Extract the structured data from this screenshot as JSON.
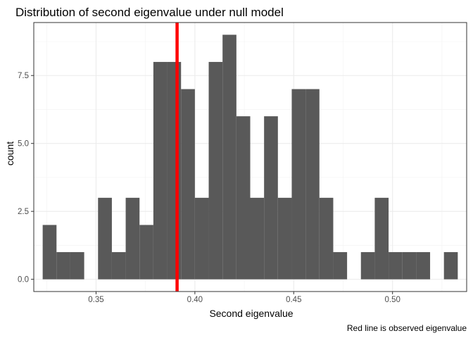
{
  "chart_data": {
    "type": "bar",
    "title": "Distribution of second eigenvalue under null model",
    "xlabel": "Second eigenvalue",
    "ylabel": "count",
    "caption": "Red line is observed eigenvalue",
    "bin_width": 0.007,
    "bins": [
      {
        "x": 0.3265,
        "count": 2
      },
      {
        "x": 0.3335,
        "count": 1
      },
      {
        "x": 0.3405,
        "count": 1
      },
      {
        "x": 0.3475,
        "count": 0
      },
      {
        "x": 0.3545,
        "count": 3
      },
      {
        "x": 0.3615,
        "count": 1
      },
      {
        "x": 0.3685,
        "count": 3
      },
      {
        "x": 0.3755,
        "count": 2
      },
      {
        "x": 0.3825,
        "count": 8
      },
      {
        "x": 0.3895,
        "count": 8
      },
      {
        "x": 0.3965,
        "count": 7
      },
      {
        "x": 0.4035,
        "count": 3
      },
      {
        "x": 0.4105,
        "count": 8
      },
      {
        "x": 0.4175,
        "count": 9
      },
      {
        "x": 0.4245,
        "count": 6
      },
      {
        "x": 0.4315,
        "count": 3
      },
      {
        "x": 0.4385,
        "count": 6
      },
      {
        "x": 0.4455,
        "count": 3
      },
      {
        "x": 0.4525,
        "count": 7
      },
      {
        "x": 0.4595,
        "count": 7
      },
      {
        "x": 0.4665,
        "count": 3
      },
      {
        "x": 0.4735,
        "count": 1
      },
      {
        "x": 0.4805,
        "count": 0
      },
      {
        "x": 0.4875,
        "count": 1
      },
      {
        "x": 0.4945,
        "count": 3
      },
      {
        "x": 0.5015,
        "count": 1
      },
      {
        "x": 0.5085,
        "count": 1
      },
      {
        "x": 0.5155,
        "count": 1
      },
      {
        "x": 0.5225,
        "count": 0
      },
      {
        "x": 0.5295,
        "count": 1
      }
    ],
    "reference_line": {
      "x": 0.391,
      "color": "#ff0000"
    },
    "bar_color": "#595959",
    "x_ticks": [
      "0.35",
      "0.40",
      "0.45",
      "0.50"
    ],
    "x_tick_values": [
      0.35,
      0.4,
      0.45,
      0.5
    ],
    "y_ticks": [
      "0.0",
      "2.5",
      "5.0",
      "7.5"
    ],
    "y_tick_values": [
      0,
      2.5,
      5.0,
      7.5
    ],
    "xlim": [
      0.3185,
      0.5375
    ],
    "ylim": [
      -0.45,
      9.45
    ],
    "grid": true,
    "legend": "none"
  }
}
